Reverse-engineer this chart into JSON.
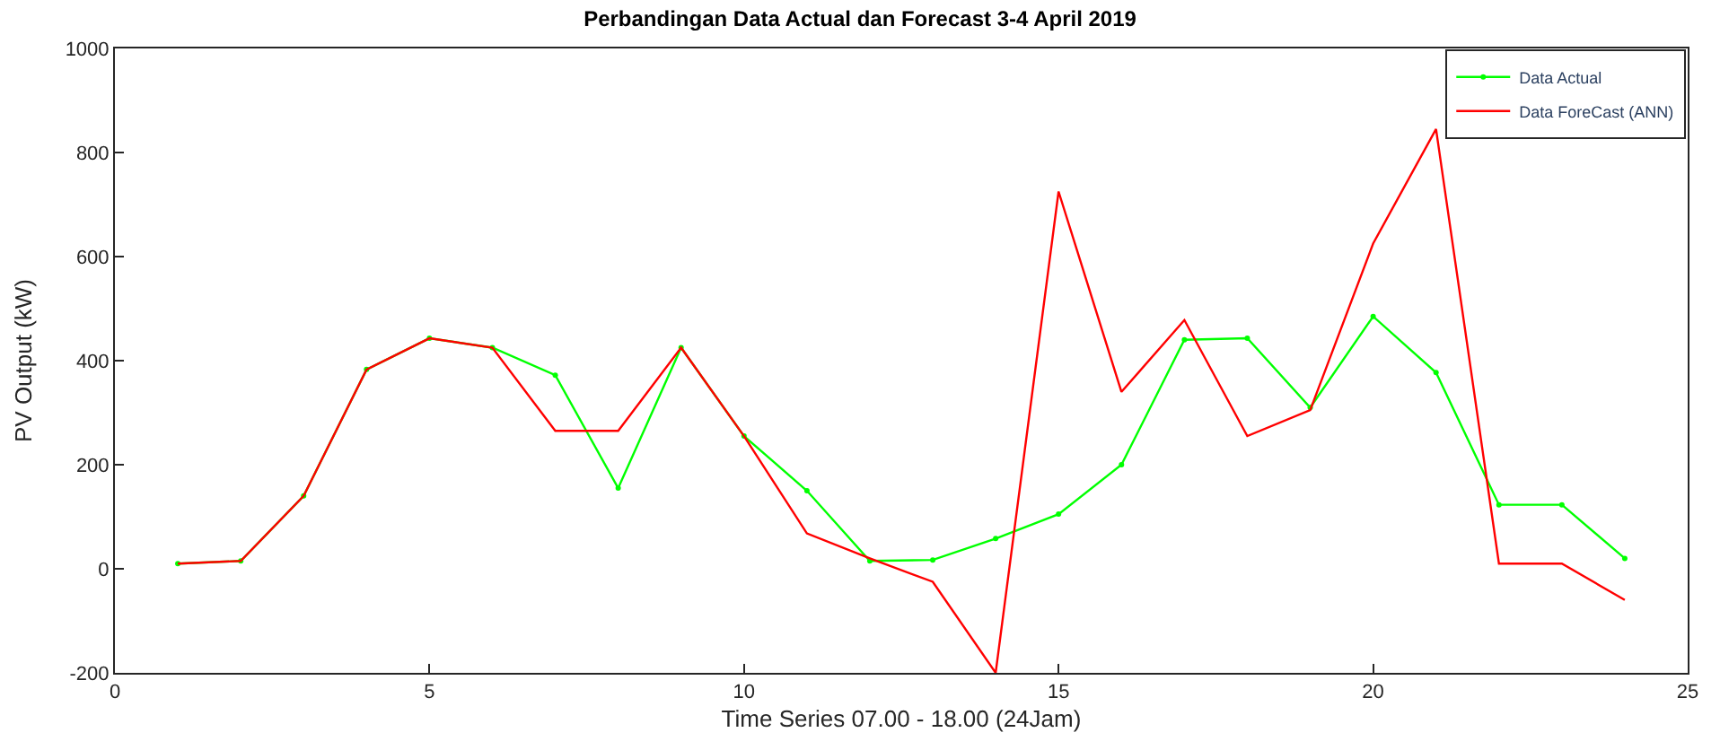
{
  "chart_data": {
    "type": "line",
    "title": "Perbandingan Data Actual dan Forecast 3-4 April 2019",
    "xlabel": "Time Series 07.00 - 18.00 (24Jam)",
    "ylabel": "PV Output (kW)",
    "x": [
      1,
      2,
      3,
      4,
      5,
      6,
      7,
      8,
      9,
      10,
      11,
      12,
      13,
      14,
      15,
      16,
      17,
      18,
      19,
      20,
      21,
      22,
      23,
      24
    ],
    "series": [
      {
        "name": "Data Actual",
        "color": "#00ff00",
        "marker": "circle",
        "values": [
          10,
          15,
          140,
          383,
          443,
          425,
          372,
          155,
          425,
          255,
          150,
          15,
          17,
          58,
          105,
          200,
          440,
          443,
          310,
          485,
          377,
          123,
          123,
          20
        ]
      },
      {
        "name": "Data ForeCast (ANN)",
        "color": "#ff0000",
        "marker": "none",
        "values": [
          10,
          15,
          140,
          383,
          443,
          425,
          265,
          265,
          425,
          255,
          68,
          20,
          -25,
          -200,
          725,
          340,
          478,
          255,
          305,
          625,
          845,
          10,
          10,
          -60
        ]
      }
    ],
    "xlim": [
      0,
      25
    ],
    "xticks": [
      0,
      5,
      10,
      15,
      20,
      25
    ],
    "ylim": [
      -200,
      1000
    ],
    "yticks": [
      -200,
      0,
      200,
      400,
      600,
      800,
      1000
    ],
    "grid": false,
    "legend": "top right",
    "line_style": "solid"
  }
}
